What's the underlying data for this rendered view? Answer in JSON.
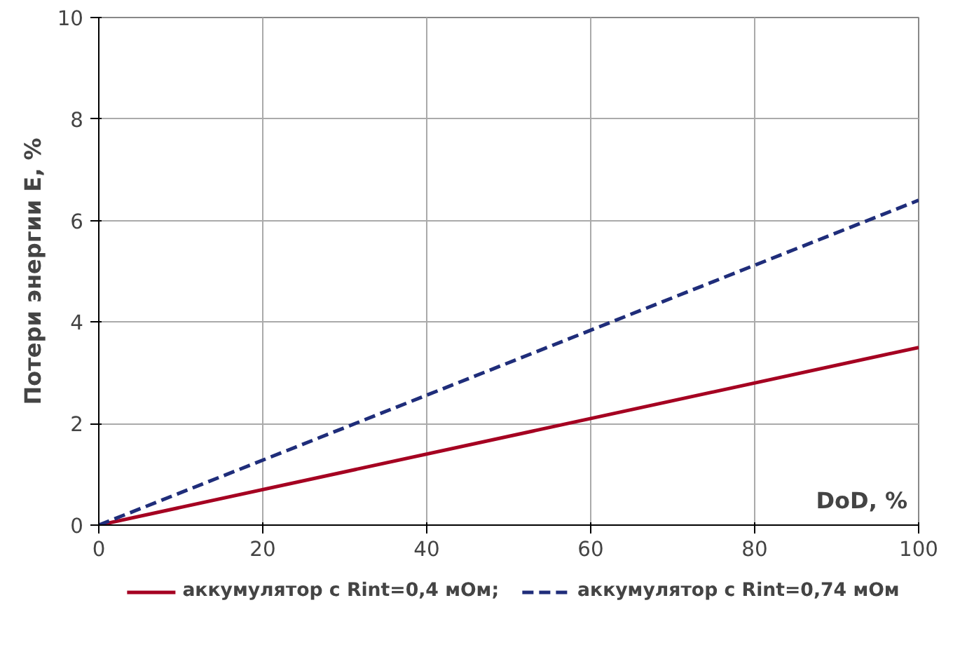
{
  "chart_data": {
    "type": "line",
    "xlabel": "DoD, %",
    "ylabel": "Потери энергии E, %",
    "x": [
      0,
      100
    ],
    "xlim": [
      0,
      100
    ],
    "xticks": [
      0,
      20,
      40,
      60,
      80,
      100
    ],
    "ylim": [
      0,
      10
    ],
    "yticks": [
      0,
      2,
      4,
      6,
      8,
      10
    ],
    "series": [
      {
        "name": "аккумулятор с Rint=0,4 мОм;",
        "color": "#a50021",
        "values": [
          0,
          3.5
        ],
        "line_style": "solid"
      },
      {
        "name": "аккумулятор с Rint=0,74 мОм",
        "color": "#1f2d7a",
        "values": [
          0,
          6.4
        ],
        "line_style": "dashed"
      }
    ],
    "grid": true,
    "legend": "bottom",
    "marker": "none"
  }
}
